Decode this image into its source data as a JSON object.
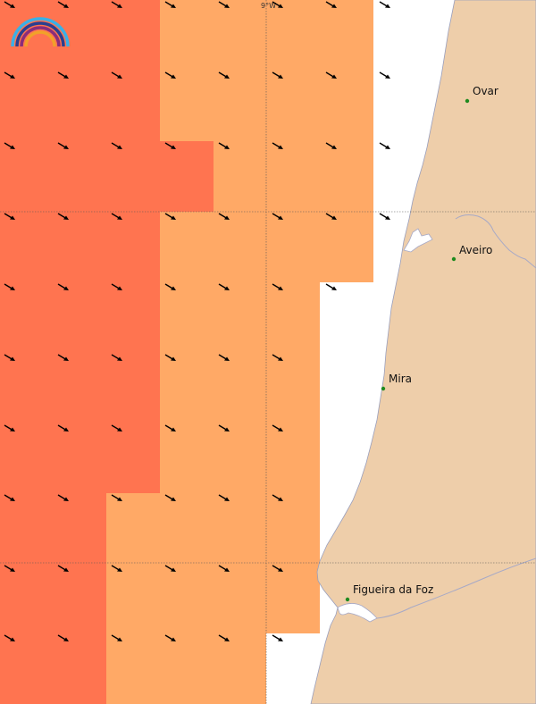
{
  "map": {
    "longitude_label": "9°W",
    "colors": {
      "sea_hot": "#ff7450",
      "sea_warm": "#ffa966",
      "sea_light": "#ffc995",
      "sea_green": "#ccfcc8",
      "sea_blue": "#66ccff",
      "land": "#eeceaa",
      "coast": "#a7a9c6",
      "town_dot": "#1f8a1f",
      "arrow": "#000000"
    },
    "towns": [
      "Ovar",
      "Aveiro",
      "Mira",
      "Figueira da Foz"
    ],
    "logo_icon": "rainbow-logo-icon"
  }
}
